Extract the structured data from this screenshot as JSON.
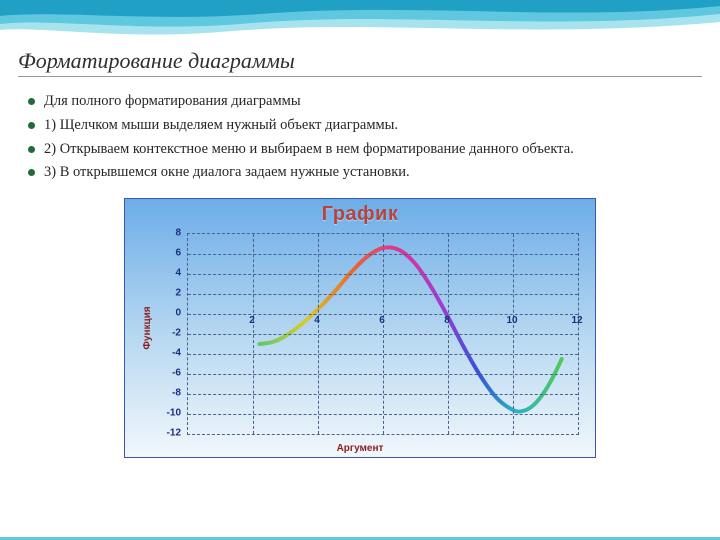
{
  "slide": {
    "title": "Форматирование диаграммы",
    "bullets": [
      "Для полного форматирования диаграммы",
      "1) Щелчком мыши  выделяем нужный объект диаграммы.",
      "2) Открываем контекстное меню и выбираем в нем форматирование данного объекта.",
      "3) В открывшемся окне диалога задаем нужные установки."
    ]
  },
  "decor": {
    "wave_colors": [
      "#1fa0c4",
      "#5fc7de",
      "#a7e3ef"
    ],
    "title_underline": "#9a9a9a",
    "bullet_color": "#1f6b3a"
  },
  "chart": {
    "type": "line",
    "title": "График",
    "title_color": "#b4443e",
    "title_fontsize": 20,
    "xlabel": "Аргумент",
    "ylabel": "Функция",
    "axis_label_color": "#8a1f1f",
    "tick_color": "#192e7e",
    "tick_fontsize": 10,
    "bg_gradient": [
      "#6dade8",
      "#b9d9f1",
      "#f2f7fc"
    ],
    "border_color": "#3b5aa6",
    "grid_color": "#47628f",
    "grid_dash": true,
    "xlim": [
      0,
      12
    ],
    "ylim": [
      -12,
      8
    ],
    "xticks": [
      2,
      4,
      6,
      8,
      10,
      12
    ],
    "yticks": [
      8,
      6,
      4,
      2,
      0,
      -2,
      -4,
      -6,
      -8,
      -10,
      -12
    ],
    "line_width": 4,
    "line_gradient_stops": [
      {
        "t": 0.0,
        "c": "#59c96b"
      },
      {
        "t": 0.15,
        "c": "#d9cc2a"
      },
      {
        "t": 0.3,
        "c": "#e86b2b"
      },
      {
        "t": 0.45,
        "c": "#e1348d"
      },
      {
        "t": 0.6,
        "c": "#a23bd4"
      },
      {
        "t": 0.72,
        "c": "#3651d8"
      },
      {
        "t": 0.84,
        "c": "#29b0c4"
      },
      {
        "t": 1.0,
        "c": "#52c958"
      }
    ],
    "series": {
      "x": [
        2.2,
        2.6,
        3.0,
        3.5,
        4.0,
        4.5,
        5.0,
        5.5,
        6.0,
        6.5,
        7.0,
        7.5,
        8.0,
        8.5,
        9.0,
        9.5,
        10.0,
        10.3,
        10.6,
        10.9,
        11.2,
        11.5
      ],
      "y": [
        -3.0,
        -2.8,
        -2.2,
        -1.0,
        0.5,
        2.2,
        4.1,
        5.7,
        6.6,
        6.4,
        5.0,
        2.6,
        -0.3,
        -3.4,
        -6.2,
        -8.4,
        -9.6,
        -9.7,
        -9.2,
        -8.1,
        -6.5,
        -4.5
      ]
    }
  }
}
